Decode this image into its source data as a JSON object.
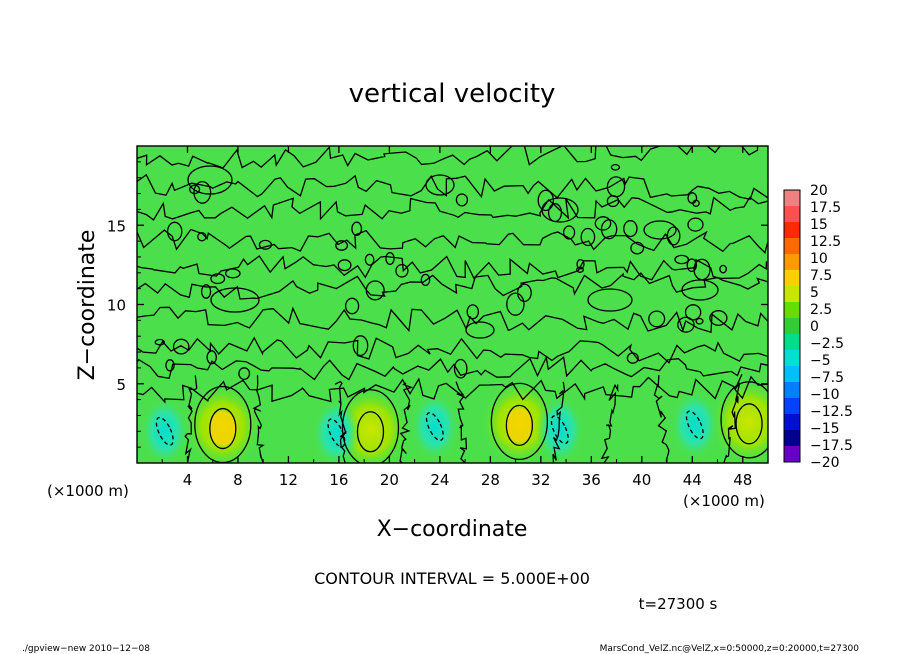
{
  "chart_data": {
    "type": "heatmap",
    "title": "vertical velocity",
    "xlabel": "X−coordinate",
    "ylabel": "Z−coordinate",
    "x_unit_left": "(×1000 m)",
    "x_unit_right": "(×1000 m)",
    "xlim": [
      0,
      50
    ],
    "ylim": [
      0,
      20
    ],
    "x_ticks": [
      4,
      8,
      12,
      16,
      20,
      24,
      28,
      32,
      36,
      40,
      44,
      48
    ],
    "y_ticks": [
      5,
      10,
      15
    ],
    "colorbar": {
      "labels": [
        "20",
        "17.5",
        "15",
        "12.5",
        "10",
        "7.5",
        "5",
        "2.5",
        "0",
        "−2.5",
        "−5",
        "−7.5",
        "−10",
        "−12.5",
        "−15",
        "−17.5",
        "−20"
      ],
      "colors": [
        "#f08080",
        "#ff5050",
        "#ff2a00",
        "#ff6a00",
        "#ff9a00",
        "#ffd000",
        "#c8e600",
        "#66dd00",
        "#33cc33",
        "#00dd88",
        "#00e0d0",
        "#00bfff",
        "#0080ff",
        "#0040ff",
        "#0010d0",
        "#000090",
        "#6a00c8"
      ]
    },
    "field_background": "#4be04b",
    "upper_region_contours": "dense turbulent 0-level contour lines between z≈3 and z≈20",
    "updraft_cores": [
      {
        "x": 6.8,
        "z": 2.3,
        "max": 7.5
      },
      {
        "x": 18.5,
        "z": 2.1,
        "max": 5
      },
      {
        "x": 30.3,
        "z": 2.5,
        "max": 7.5
      },
      {
        "x": 48.5,
        "z": 2.6,
        "max": 5
      }
    ],
    "downdraft_cores": [
      {
        "x": 2.2,
        "z": 2.0,
        "min": -5
      },
      {
        "x": 15.8,
        "z": 1.9,
        "min": -5
      },
      {
        "x": 23.6,
        "z": 2.3,
        "min": -5
      },
      {
        "x": 33.5,
        "z": 2.1,
        "min": -5
      },
      {
        "x": 44.2,
        "z": 2.4,
        "min": -5
      }
    ]
  },
  "annotations": {
    "contour_interval": "CONTOUR INTERVAL = 5.000E+00",
    "time": "t=27300 s"
  },
  "footer": {
    "left": "./gpview−new   2010−12−08",
    "right": "MarsCond_VelZ.nc@VelZ,x=0:50000,z=0:20000,t=27300"
  }
}
